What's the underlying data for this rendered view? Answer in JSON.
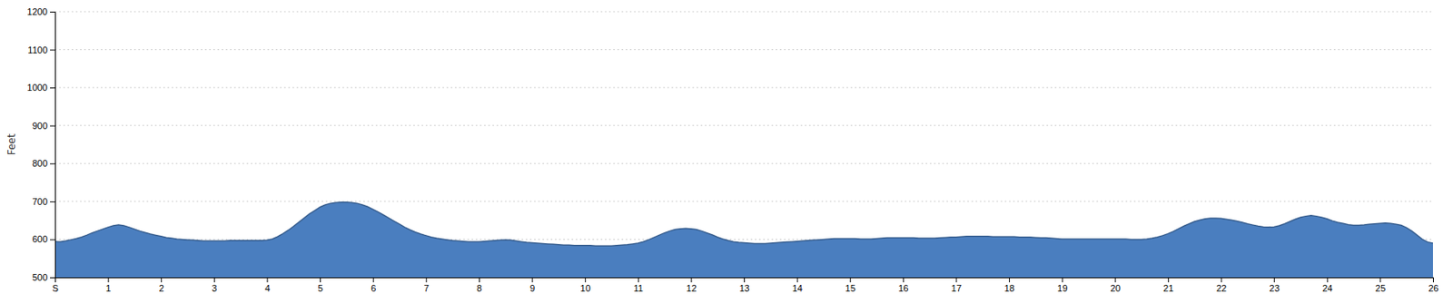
{
  "chart_data": {
    "type": "area",
    "ylabel": "Feet",
    "color": "#4a7ebf",
    "grid": true,
    "xlim": [
      0,
      26
    ],
    "ylim": [
      500,
      1200
    ],
    "xticks": [
      {
        "value": 0,
        "label": "S"
      },
      1,
      2,
      3,
      4,
      5,
      6,
      7,
      8,
      9,
      10,
      11,
      12,
      13,
      14,
      15,
      16,
      17,
      18,
      19,
      20,
      21,
      22,
      23,
      24,
      25,
      26
    ],
    "yticks": [
      500,
      600,
      700,
      800,
      900,
      1000,
      1100,
      1200
    ],
    "x": [
      0,
      0.05,
      0.1,
      0.2,
      0.3,
      0.4,
      0.5,
      0.6,
      0.7,
      0.8,
      0.9,
      1,
      1.1,
      1.2,
      1.3,
      1.4,
      1.5,
      1.6,
      1.7,
      1.8,
      1.9,
      2,
      2.1,
      2.2,
      2.3,
      2.4,
      2.5,
      2.6,
      2.7,
      2.8,
      2.9,
      3,
      3.1,
      3.2,
      3.3,
      3.4,
      3.5,
      3.6,
      3.7,
      3.8,
      3.9,
      4,
      4.1,
      4.2,
      4.3,
      4.4,
      4.5,
      4.6,
      4.7,
      4.8,
      4.9,
      5,
      5.1,
      5.2,
      5.3,
      5.4,
      5.5,
      5.6,
      5.7,
      5.8,
      5.9,
      6,
      6.1,
      6.2,
      6.3,
      6.4,
      6.5,
      6.6,
      6.7,
      6.8,
      6.9,
      7,
      7.1,
      7.2,
      7.3,
      7.4,
      7.5,
      7.6,
      7.7,
      7.8,
      7.9,
      8,
      8.1,
      8.2,
      8.3,
      8.4,
      8.5,
      8.6,
      8.7,
      8.8,
      8.9,
      9,
      9.1,
      9.2,
      9.3,
      9.4,
      9.5,
      9.6,
      9.7,
      9.8,
      9.9,
      10,
      10.1,
      10.2,
      10.3,
      10.4,
      10.5,
      10.6,
      10.7,
      10.8,
      10.9,
      11,
      11.1,
      11.2,
      11.3,
      11.4,
      11.5,
      11.6,
      11.7,
      11.8,
      11.9,
      12,
      12.1,
      12.2,
      12.3,
      12.4,
      12.5,
      12.6,
      12.7,
      12.8,
      12.9,
      13,
      13.1,
      13.2,
      13.3,
      13.4,
      13.5,
      13.6,
      13.7,
      13.8,
      13.9,
      14,
      14.1,
      14.2,
      14.3,
      14.4,
      14.5,
      14.6,
      14.7,
      14.8,
      14.9,
      15,
      15.1,
      15.2,
      15.3,
      15.4,
      15.5,
      15.6,
      15.7,
      15.8,
      15.9,
      16,
      16.1,
      16.2,
      16.3,
      16.4,
      16.5,
      16.6,
      16.7,
      16.8,
      16.9,
      17,
      17.1,
      17.2,
      17.3,
      17.4,
      17.5,
      17.6,
      17.7,
      17.8,
      17.9,
      18,
      18.1,
      18.2,
      18.3,
      18.4,
      18.5,
      18.6,
      18.7,
      18.8,
      18.9,
      19,
      19.1,
      19.2,
      19.3,
      19.4,
      19.5,
      19.6,
      19.7,
      19.8,
      19.9,
      20,
      20.1,
      20.2,
      20.3,
      20.4,
      20.5,
      20.6,
      20.7,
      20.8,
      20.9,
      21,
      21.1,
      21.2,
      21.3,
      21.4,
      21.5,
      21.6,
      21.7,
      21.8,
      21.9,
      22,
      22.1,
      22.2,
      22.3,
      22.4,
      22.5,
      22.6,
      22.7,
      22.8,
      22.9,
      23,
      23.1,
      23.2,
      23.3,
      23.4,
      23.5,
      23.6,
      23.7,
      23.8,
      23.9,
      24,
      24.1,
      24.2,
      24.3,
      24.4,
      24.5,
      24.6,
      24.7,
      24.8,
      24.9,
      25,
      25.1,
      25.2,
      25.3,
      25.4,
      25.5,
      25.6,
      25.7,
      25.8,
      25.9,
      26
    ],
    "values": [
      595,
      594,
      594,
      596,
      599,
      602,
      606,
      611,
      617,
      622,
      627,
      632,
      636,
      638,
      636,
      632,
      627,
      622,
      618,
      614,
      611,
      608,
      605,
      603,
      601,
      600,
      599,
      598,
      597,
      596,
      596,
      596,
      596,
      596,
      597,
      597,
      597,
      597,
      597,
      597,
      597,
      598,
      601,
      607,
      615,
      624,
      634,
      645,
      656,
      667,
      676,
      685,
      691,
      695,
      697,
      698,
      698,
      697,
      695,
      691,
      686,
      679,
      672,
      664,
      656,
      648,
      640,
      632,
      625,
      619,
      614,
      610,
      606,
      603,
      601,
      599,
      597,
      596,
      595,
      594,
      594,
      594,
      595,
      596,
      597,
      598,
      599,
      598,
      596,
      594,
      592,
      591,
      590,
      589,
      588,
      587,
      586,
      585,
      585,
      584,
      584,
      584,
      584,
      583,
      583,
      583,
      583,
      584,
      585,
      586,
      588,
      590,
      594,
      599,
      605,
      611,
      617,
      622,
      626,
      628,
      629,
      628,
      626,
      622,
      617,
      612,
      606,
      601,
      597,
      594,
      592,
      591,
      590,
      589,
      589,
      589,
      590,
      591,
      592,
      593,
      594,
      595,
      596,
      597,
      598,
      599,
      600,
      601,
      602,
      602,
      602,
      602,
      602,
      601,
      601,
      601,
      602,
      603,
      604,
      604,
      604,
      604,
      604,
      604,
      603,
      603,
      603,
      603,
      604,
      605,
      606,
      606,
      607,
      608,
      608,
      608,
      608,
      608,
      607,
      607,
      607,
      607,
      607,
      606,
      606,
      606,
      605,
      604,
      604,
      603,
      602,
      601,
      601,
      601,
      601,
      601,
      601,
      601,
      601,
      601,
      601,
      601,
      601,
      601,
      600,
      600,
      600,
      601,
      603,
      606,
      610,
      615,
      621,
      628,
      635,
      641,
      647,
      651,
      654,
      656,
      656,
      655,
      653,
      651,
      648,
      645,
      641,
      638,
      635,
      633,
      632,
      633,
      636,
      641,
      647,
      653,
      658,
      661,
      663,
      661,
      658,
      654,
      649,
      645,
      642,
      639,
      637,
      637,
      638,
      640,
      641,
      642,
      643,
      642,
      640,
      637,
      631,
      622,
      611,
      600,
      593,
      590
    ]
  }
}
